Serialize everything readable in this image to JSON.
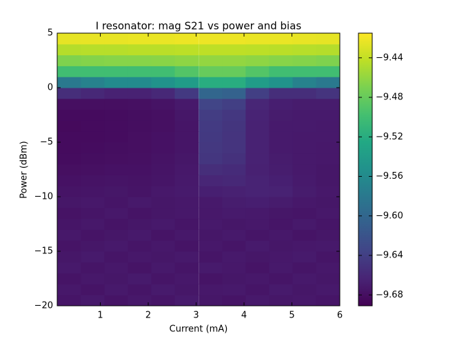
{
  "chart_data": {
    "type": "heatmap",
    "title": "I resonator: mag S21 vs power and bias",
    "x_label": "Current (mA)",
    "y_label": "Power (dBm)",
    "colormap": "viridis",
    "xlim": [
      0.1,
      6
    ],
    "ylim": [
      -20,
      5
    ],
    "xticks": [
      1,
      2,
      3,
      4,
      5,
      6
    ],
    "yticks": [
      {
        "value": -20,
        "label": "−20"
      },
      {
        "value": -15,
        "label": "−15"
      },
      {
        "value": -10,
        "label": "−10"
      },
      {
        "value": -5,
        "label": "−5"
      },
      0,
      5
    ],
    "clim": [
      -9.691,
      -9.415
    ],
    "cticks": [
      {
        "value": -9.68,
        "label": "−9.68"
      },
      {
        "value": -9.64,
        "label": "−9.64"
      },
      {
        "value": -9.6,
        "label": "−9.60"
      },
      {
        "value": -9.56,
        "label": "−9.56"
      },
      {
        "value": -9.52,
        "label": "−9.52"
      },
      {
        "value": -9.48,
        "label": "−9.48"
      },
      {
        "value": -9.44,
        "label": "−9.44"
      }
    ],
    "x": [
      0.35,
      0.84,
      1.33,
      1.82,
      2.31,
      2.8,
      3.3,
      3.79,
      4.28,
      4.77,
      5.26,
      5.75
    ],
    "y": [
      -19.5,
      -18.5,
      -17.5,
      -16.5,
      -15.5,
      -14.5,
      -13.5,
      -12.5,
      -11.5,
      -10.5,
      -9.5,
      -8.5,
      -7.5,
      -6.5,
      -5.5,
      -4.5,
      -3.5,
      -2.5,
      -1.5,
      -0.5,
      0.5,
      1.5,
      2.5,
      3.5,
      4.5
    ],
    "values": [
      [
        -9.675,
        -9.672,
        -9.676,
        -9.673,
        -9.675,
        -9.671,
        -9.674,
        -9.676,
        -9.672,
        -9.674,
        -9.673,
        -9.675
      ],
      [
        -9.673,
        -9.676,
        -9.672,
        -9.675,
        -9.671,
        -9.674,
        -9.673,
        -9.672,
        -9.675,
        -9.671,
        -9.674,
        -9.672
      ],
      [
        -9.676,
        -9.673,
        -9.674,
        -9.671,
        -9.675,
        -9.673,
        -9.676,
        -9.674,
        -9.673,
        -9.675,
        -9.672,
        -9.674
      ],
      [
        -9.672,
        -9.675,
        -9.673,
        -9.676,
        -9.672,
        -9.675,
        -9.671,
        -9.673,
        -9.676,
        -9.672,
        -9.675,
        -9.673
      ],
      [
        -9.674,
        -9.671,
        -9.675,
        -9.673,
        -9.674,
        -9.672,
        -9.675,
        -9.672,
        -9.674,
        -9.673,
        -9.671,
        -9.675
      ],
      [
        -9.676,
        -9.674,
        -9.672,
        -9.675,
        -9.673,
        -9.676,
        -9.673,
        -9.675,
        -9.671,
        -9.674,
        -9.673,
        -9.672
      ],
      [
        -9.673,
        -9.676,
        -9.674,
        -9.672,
        -9.676,
        -9.673,
        -9.674,
        -9.672,
        -9.675,
        -9.673,
        -9.676,
        -9.674
      ],
      [
        -9.675,
        -9.673,
        -9.676,
        -9.674,
        -9.672,
        -9.675,
        -9.672,
        -9.674,
        -9.673,
        -9.675,
        -9.672,
        -9.675
      ],
      [
        -9.677,
        -9.675,
        -9.673,
        -9.676,
        -9.674,
        -9.673,
        -9.673,
        -9.671,
        -9.672,
        -9.674,
        -9.675,
        -9.673
      ],
      [
        -9.674,
        -9.673,
        -9.675,
        -9.672,
        -9.674,
        -9.673,
        -9.672,
        -9.669,
        -9.668,
        -9.67,
        -9.673,
        -9.674
      ],
      [
        -9.676,
        -9.675,
        -9.674,
        -9.676,
        -9.673,
        -9.671,
        -9.667,
        -9.666,
        -9.664,
        -9.665,
        -9.67,
        -9.673
      ],
      [
        -9.678,
        -9.677,
        -9.676,
        -9.677,
        -9.675,
        -9.672,
        -9.662,
        -9.66,
        -9.664,
        -9.667,
        -9.671,
        -9.674
      ],
      [
        -9.68,
        -9.679,
        -9.678,
        -9.678,
        -9.676,
        -9.673,
        -9.655,
        -9.657,
        -9.666,
        -9.669,
        -9.672,
        -9.674
      ],
      [
        -9.682,
        -9.681,
        -9.68,
        -9.679,
        -9.677,
        -9.674,
        -9.648,
        -9.652,
        -9.665,
        -9.67,
        -9.672,
        -9.673
      ],
      [
        -9.683,
        -9.682,
        -9.681,
        -9.68,
        -9.678,
        -9.675,
        -9.646,
        -9.65,
        -9.665,
        -9.671,
        -9.672,
        -9.673
      ],
      [
        -9.683,
        -9.683,
        -9.682,
        -9.68,
        -9.678,
        -9.675,
        -9.645,
        -9.65,
        -9.665,
        -9.671,
        -9.672,
        -9.672
      ],
      [
        -9.684,
        -9.683,
        -9.682,
        -9.681,
        -9.679,
        -9.675,
        -9.644,
        -9.649,
        -9.665,
        -9.671,
        -9.671,
        -9.672
      ],
      [
        -9.683,
        -9.683,
        -9.682,
        -9.681,
        -9.679,
        -9.674,
        -9.642,
        -9.647,
        -9.664,
        -9.67,
        -9.671,
        -9.671
      ],
      [
        -9.68,
        -9.68,
        -9.68,
        -9.679,
        -9.677,
        -9.672,
        -9.635,
        -9.64,
        -9.662,
        -9.668,
        -9.67,
        -9.67
      ],
      [
        -9.655,
        -9.66,
        -9.665,
        -9.665,
        -9.66,
        -9.645,
        -9.6,
        -9.605,
        -9.64,
        -9.655,
        -9.655,
        -9.65
      ],
      [
        -9.58,
        -9.57,
        -9.56,
        -9.56,
        -9.55,
        -9.54,
        -9.52,
        -9.52,
        -9.54,
        -9.55,
        -9.57,
        -9.58
      ],
      [
        -9.5,
        -9.5,
        -9.5,
        -9.5,
        -9.5,
        -9.49,
        -9.48,
        -9.48,
        -9.49,
        -9.5,
        -9.5,
        -9.5
      ],
      [
        -9.468,
        -9.466,
        -9.465,
        -9.465,
        -9.464,
        -9.462,
        -9.46,
        -9.46,
        -9.462,
        -9.465,
        -9.466,
        -9.468
      ],
      [
        -9.446,
        -9.445,
        -9.445,
        -9.444,
        -9.444,
        -9.443,
        -9.442,
        -9.442,
        -9.443,
        -9.444,
        -9.445,
        -9.446
      ],
      [
        -9.425,
        -9.424,
        -9.424,
        -9.423,
        -9.423,
        -9.422,
        -9.422,
        -9.422,
        -9.423,
        -9.423,
        -9.424,
        -9.425
      ]
    ]
  }
}
